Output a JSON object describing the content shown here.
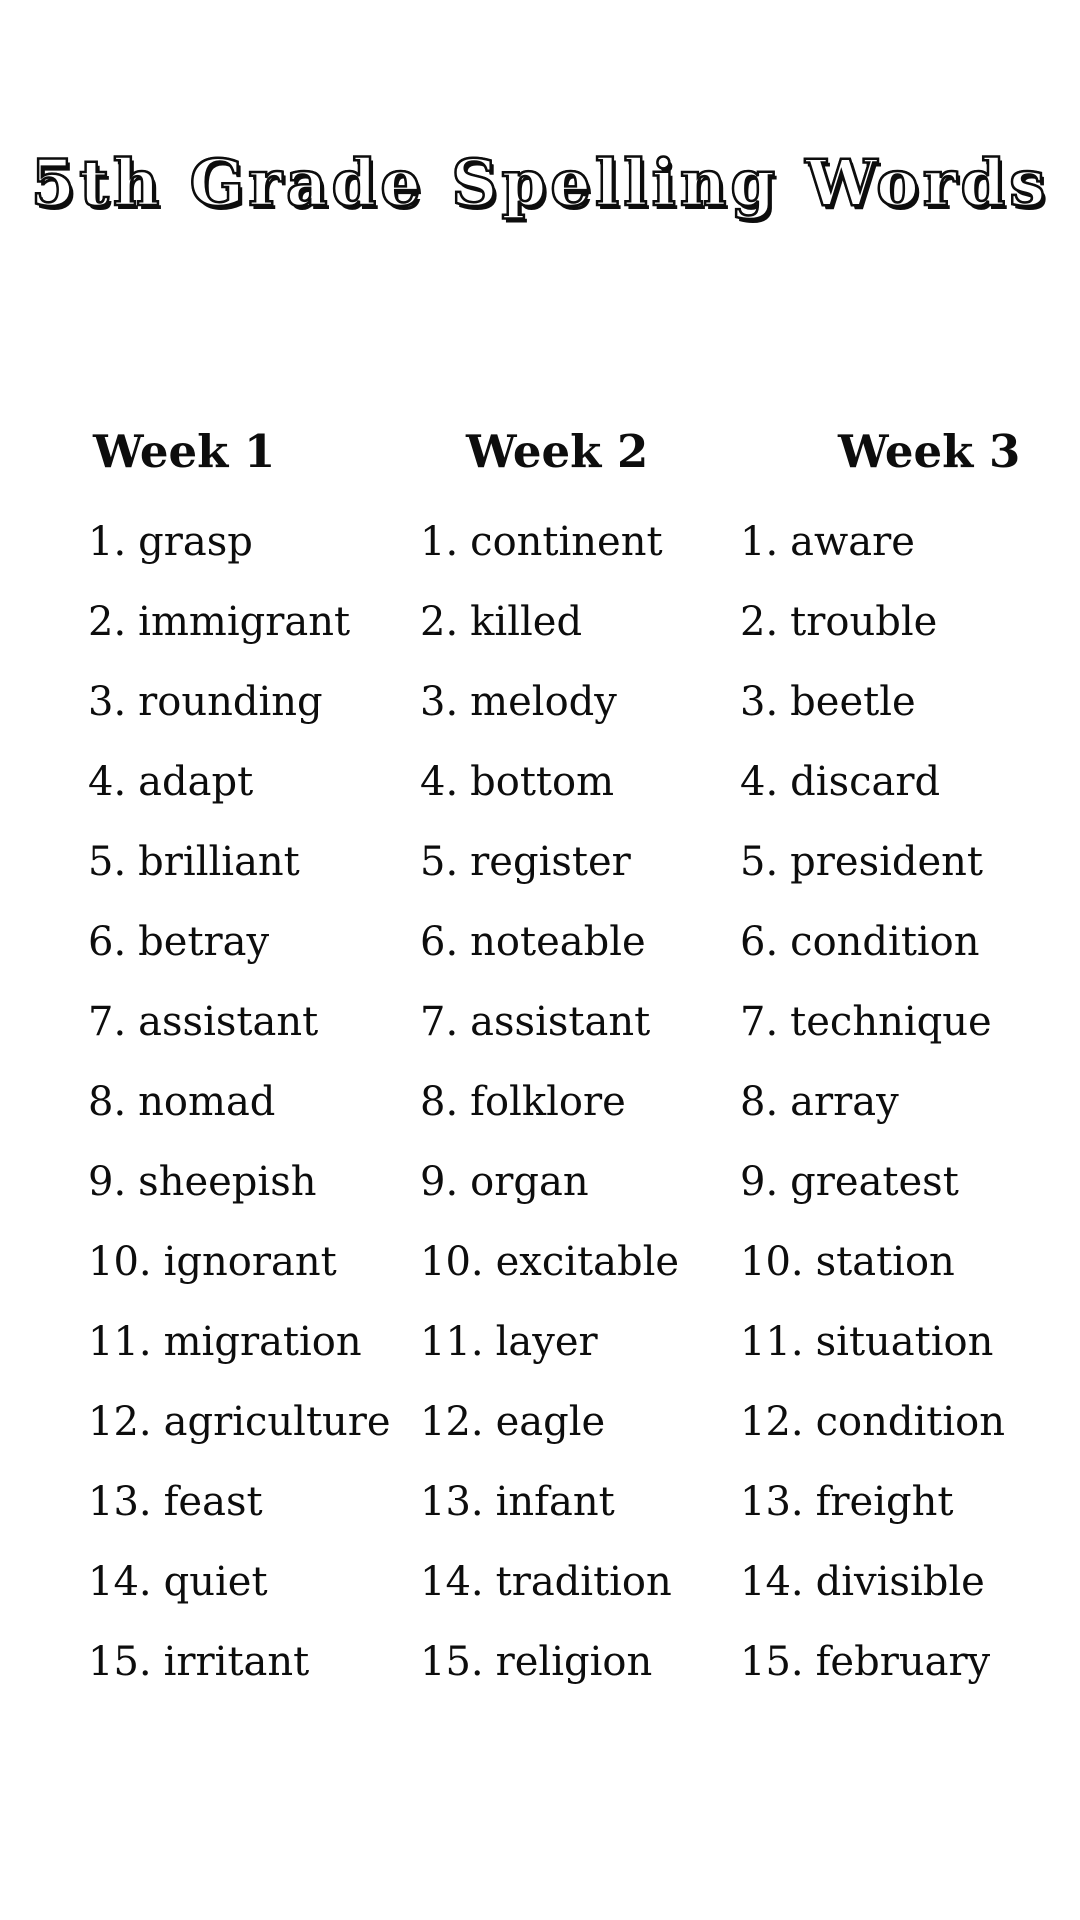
{
  "page": {
    "title": "5th Grade Spelling Words"
  },
  "columns": [
    {
      "header": "Week 1",
      "words": [
        "grasp",
        "immigrant",
        "rounding",
        "adapt",
        "brilliant",
        "betray",
        "assistant",
        "nomad",
        "sheepish",
        "ignorant",
        "migration",
        "agriculture",
        "feast",
        "quiet",
        "irritant"
      ]
    },
    {
      "header": "Week 2",
      "words": [
        "continent",
        "killed",
        "melody",
        "bottom",
        "register",
        "noteable",
        "assistant",
        "folklore",
        "organ",
        "excitable",
        "layer",
        "eagle",
        "infant",
        "tradition",
        "religion"
      ]
    },
    {
      "header": "Week 3",
      "words": [
        "aware",
        "trouble",
        "beetle",
        "discard",
        "president",
        "condition",
        "technique",
        "array",
        "greatest",
        "station",
        "situation",
        "condition",
        "freight",
        "divisible",
        "february"
      ]
    }
  ]
}
